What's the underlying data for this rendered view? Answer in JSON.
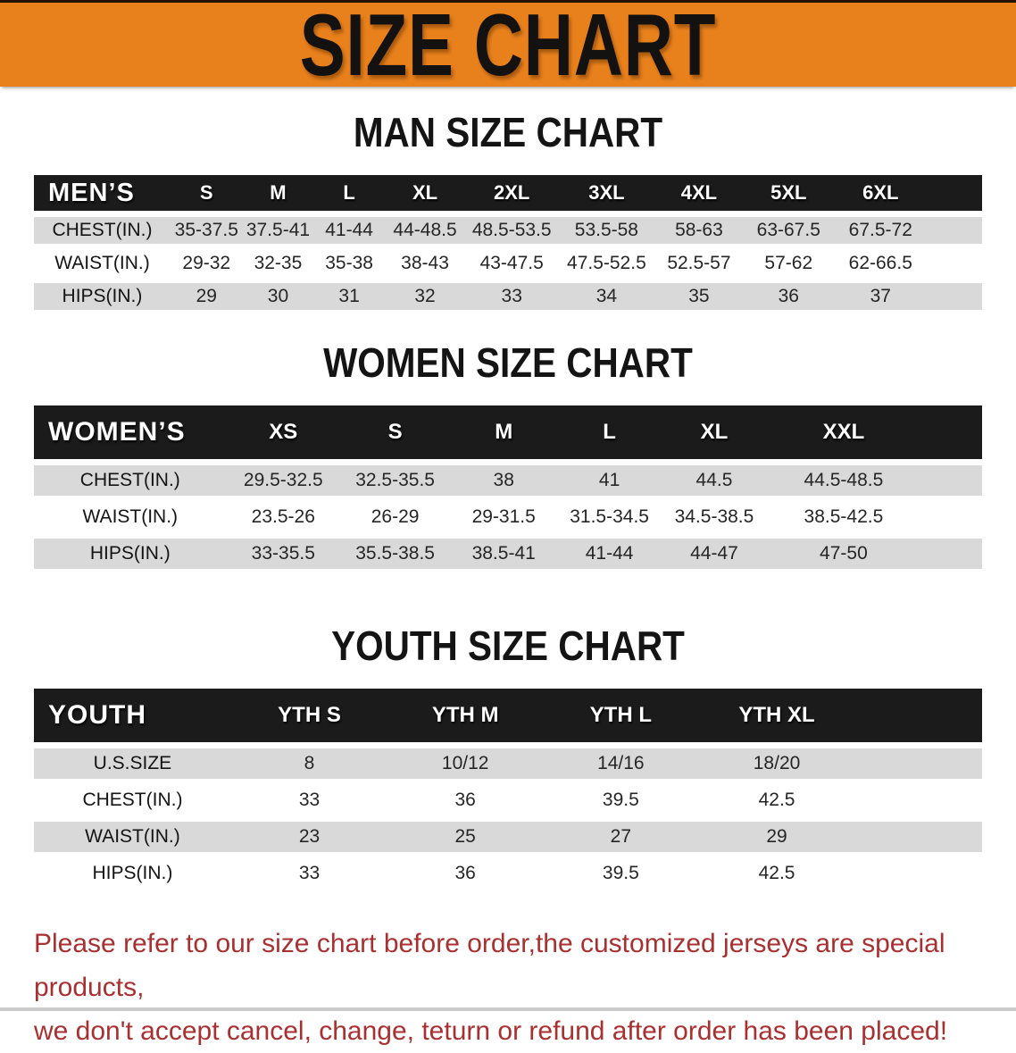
{
  "banner": {
    "title": "SIZE CHART"
  },
  "colors": {
    "banner_bg": "#E8801C",
    "header_bar": "#1B1B1B",
    "row_stripe": "#D9D9D9",
    "footnote_red": "#A93030"
  },
  "sections": [
    {
      "heading": "MAN SIZE CHART",
      "table": {
        "header_label": "MEN’S",
        "columns": [
          "S",
          "M",
          "L",
          "XL",
          "2XL",
          "3XL",
          "4XL",
          "5XL",
          "6XL"
        ],
        "rows": [
          {
            "label": "CHEST(IN.)",
            "values": [
              "35-37.5",
              "37.5-41",
              "41-44",
              "44-48.5",
              "48.5-53.5",
              "53.5-58",
              "58-63",
              "63-67.5",
              "67.5-72"
            ]
          },
          {
            "label": "WAIST(IN.)",
            "values": [
              "29-32",
              "32-35",
              "35-38",
              "38-43",
              "43-47.5",
              "47.5-52.5",
              "52.5-57",
              "57-62",
              "62-66.5"
            ]
          },
          {
            "label": "HIPS(IN.)",
            "values": [
              "29",
              "30",
              "31",
              "32",
              "33",
              "34",
              "35",
              "36",
              "37"
            ]
          }
        ]
      }
    },
    {
      "heading": "WOMEN SIZE CHART",
      "table": {
        "header_label": "WOMEN’S",
        "columns": [
          "XS",
          "S",
          "M",
          "L",
          "XL",
          "XXL"
        ],
        "rows": [
          {
            "label": "CHEST(IN.)",
            "values": [
              "29.5-32.5",
              "32.5-35.5",
              "38",
              "41",
              "44.5",
              "44.5-48.5"
            ]
          },
          {
            "label": "WAIST(IN.)",
            "values": [
              "23.5-26",
              "26-29",
              "29-31.5",
              "31.5-34.5",
              "34.5-38.5",
              "38.5-42.5"
            ]
          },
          {
            "label": "HIPS(IN.)",
            "values": [
              "33-35.5",
              "35.5-38.5",
              "38.5-41",
              "41-44",
              "44-47",
              "47-50"
            ]
          }
        ]
      }
    },
    {
      "heading": "YOUTH SIZE CHART",
      "table": {
        "header_label": "YOUTH",
        "columns": [
          "YTH S",
          "YTH M",
          "YTH L",
          "YTH XL"
        ],
        "rows": [
          {
            "label": "U.S.SIZE",
            "values": [
              "8",
              "10/12",
              "14/16",
              "18/20"
            ]
          },
          {
            "label": "CHEST(IN.)",
            "values": [
              "33",
              "36",
              "39.5",
              "42.5"
            ]
          },
          {
            "label": "WAIST(IN.)",
            "values": [
              "23",
              "25",
              "27",
              "29"
            ]
          },
          {
            "label": "HIPS(IN.)",
            "values": [
              "33",
              "36",
              "39.5",
              "42.5"
            ]
          }
        ]
      }
    }
  ],
  "footnote": {
    "line1": "Please refer to our size chart before order,the customized jerseys are special products,",
    "line2": "we don't accept cancel, change, teturn or refund after order has been placed!"
  }
}
